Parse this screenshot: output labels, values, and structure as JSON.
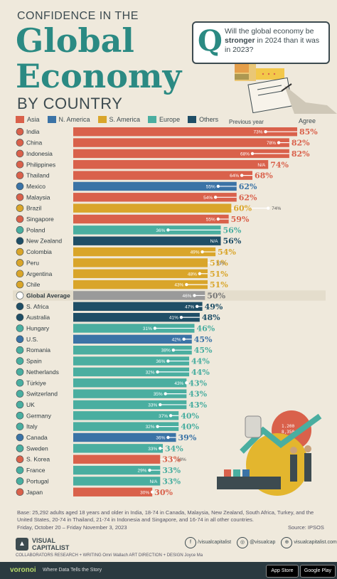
{
  "header": {
    "pre_title": "CONFIDENCE IN THE",
    "title_line1": "Global",
    "title_line2": "Economy",
    "title_line3": "BY COUNTRY"
  },
  "question": {
    "icon": "Q",
    "text_before": "Will the global economy be ",
    "text_bold": "stronger",
    "text_after": " in 2024 than it was in 2023?"
  },
  "legend": [
    {
      "label": "Asia",
      "color": "#d9614b"
    },
    {
      "label": "N. America",
      "color": "#3b73a6"
    },
    {
      "label": "S. America",
      "color": "#d9a52a"
    },
    {
      "label": "Europe",
      "color": "#4aaea0"
    },
    {
      "label": "Others",
      "color": "#1f4e66"
    }
  ],
  "chart_data": {
    "type": "bar",
    "orientation": "horizontal",
    "value_header": "Agree",
    "previous_header": "Previous year",
    "xlim": [
      0,
      100
    ],
    "rows": [
      {
        "country": "India",
        "region": "Asia",
        "value": 85,
        "previous": "73%"
      },
      {
        "country": "China",
        "region": "Asia",
        "value": 82,
        "previous": "78%"
      },
      {
        "country": "Indonesia",
        "region": "Asia",
        "value": 82,
        "previous": "68%"
      },
      {
        "country": "Philippines",
        "region": "Asia",
        "value": 74,
        "previous": "N/A"
      },
      {
        "country": "Thailand",
        "region": "Asia",
        "value": 68,
        "previous": "64%"
      },
      {
        "country": "Mexico",
        "region": "N. America",
        "value": 62,
        "previous": "55%"
      },
      {
        "country": "Malaysia",
        "region": "Asia",
        "value": 62,
        "previous": "54%"
      },
      {
        "country": "Brazil",
        "region": "S. America",
        "value": 60,
        "previous": "74%"
      },
      {
        "country": "Singapore",
        "region": "Asia",
        "value": 59,
        "previous": "55%"
      },
      {
        "country": "Poland",
        "region": "Europe",
        "value": 56,
        "previous": "36%"
      },
      {
        "country": "New Zealand",
        "region": "Others",
        "value": 56,
        "previous": "N/A"
      },
      {
        "country": "Colombia",
        "region": "S. America",
        "value": 54,
        "previous": "49%"
      },
      {
        "country": "Peru",
        "region": "S. America",
        "value": 51,
        "previous": "53%"
      },
      {
        "country": "Argentina",
        "region": "S. America",
        "value": 51,
        "previous": "48%"
      },
      {
        "country": "Chile",
        "region": "S. America",
        "value": 51,
        "previous": "43%"
      },
      {
        "country": "Global Average",
        "region": "Global",
        "value": 50,
        "previous": "46%"
      },
      {
        "country": "S. Africa",
        "region": "Others",
        "value": 49,
        "previous": "47%"
      },
      {
        "country": "Australia",
        "region": "Others",
        "value": 48,
        "previous": "41%"
      },
      {
        "country": "Hungary",
        "region": "Europe",
        "value": 46,
        "previous": "31%"
      },
      {
        "country": "U.S.",
        "region": "N. America",
        "value": 45,
        "previous": "42%"
      },
      {
        "country": "Romania",
        "region": "Europe",
        "value": 45,
        "previous": "38%"
      },
      {
        "country": "Spain",
        "region": "Europe",
        "value": 44,
        "previous": "36%"
      },
      {
        "country": "Netherlands",
        "region": "Europe",
        "value": 44,
        "previous": "32%"
      },
      {
        "country": "Türkiye",
        "region": "Europe",
        "value": 43,
        "previous": "43%"
      },
      {
        "country": "Switzerland",
        "region": "Europe",
        "value": 43,
        "previous": "35%"
      },
      {
        "country": "UK",
        "region": "Europe",
        "value": 43,
        "previous": "33%"
      },
      {
        "country": "Germany",
        "region": "Europe",
        "value": 40,
        "previous": "37%"
      },
      {
        "country": "Italy",
        "region": "Europe",
        "value": 40,
        "previous": "32%"
      },
      {
        "country": "Canada",
        "region": "N. America",
        "value": 39,
        "previous": "36%"
      },
      {
        "country": "Sweden",
        "region": "Europe",
        "value": 34,
        "previous": "33%"
      },
      {
        "country": "S. Korea",
        "region": "Asia",
        "value": 33,
        "previous": "38%"
      },
      {
        "country": "France",
        "region": "Europe",
        "value": 33,
        "previous": "29%"
      },
      {
        "country": "Portugal",
        "region": "Europe",
        "value": 33,
        "previous": "N/A"
      },
      {
        "country": "Japan",
        "region": "Asia",
        "value": 30,
        "previous": "30%"
      }
    ],
    "colors": {
      "Asia": "#d9614b",
      "N. America": "#3b73a6",
      "S. America": "#d9a52a",
      "Europe": "#4aaea0",
      "Others": "#1f4e66",
      "Global": "#9a9a9a"
    }
  },
  "footer": {
    "base_note": "Base: 25,292 adults aged 18 years and older in India, 18-74 in Canada, Malaysia, New Zealand, South Africa, Turkey, and the United States, 20-74 in Thailand, 21-74 in Indonesia and Singapore, and 16-74 in all other countries.",
    "dates": "Friday, October 20 – Friday November 3, 2023",
    "source": "Source: IPSOS",
    "logo_line1": "VISUAL",
    "logo_line2": "CAPITALIST",
    "collaborators": "COLLABORATORS   RESEARCH + WRITING Omri Wallach   ART DIRECTION + DESIGN Joyce Ma",
    "social": [
      "/visualcapitalist",
      "@visualcap",
      "visualcapitalist.com"
    ],
    "voronoi": "voronoi",
    "voronoi_tag": "Where Data Tells the Story",
    "app_store": "App Store",
    "google_play": "Google Play"
  }
}
